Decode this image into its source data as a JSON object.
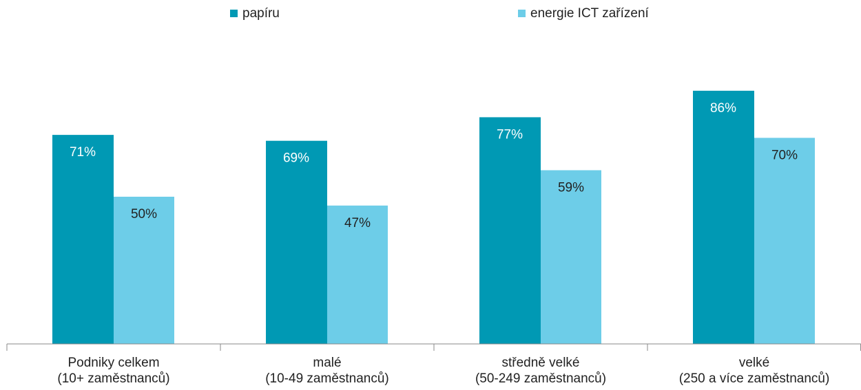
{
  "chart_data": {
    "type": "bar",
    "categories": [
      "Podniky celkem\n(10+ zaměstnanců)",
      "malé\n(10-49 zaměstnanců)",
      "středně velké\n(50-249 zaměstnanců)",
      "velké\n(250 a více zaměstnanců)"
    ],
    "series": [
      {
        "name": "papíru",
        "color": "#0099b4",
        "values": [
          71,
          69,
          77,
          86
        ],
        "value_labels": [
          "71%",
          "69%",
          "77%",
          "86%"
        ]
      },
      {
        "name": "energie ICT zařízení",
        "color": "#6dcde8",
        "values": [
          50,
          47,
          59,
          70
        ],
        "value_labels": [
          "50%",
          "47%",
          "59%",
          "70%"
        ]
      }
    ],
    "legend": "top"
  }
}
